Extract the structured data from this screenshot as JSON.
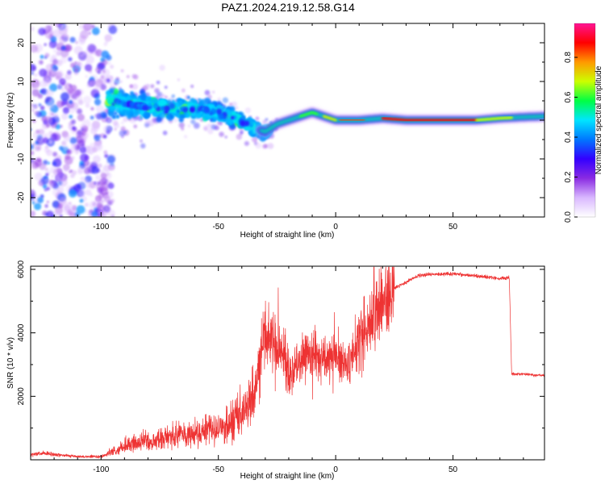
{
  "figure": {
    "title": "PAZ1.2024.219.12.58.G14"
  },
  "chart_data": [
    {
      "type": "heatmap",
      "title": "PAZ1.2024.219.12.58.G14",
      "xlabel": "Height of straight line (km)",
      "ylabel": "Frequency (Hz)",
      "xlim": [
        -130,
        89
      ],
      "ylim": [
        -25,
        25
      ],
      "x_ticks": [
        -100,
        -50,
        0,
        50
      ],
      "y_ticks": [
        -20,
        -10,
        0,
        10,
        20
      ],
      "colorbar": {
        "label": "Normalized spectral amplitude",
        "range": [
          0,
          0.97
        ],
        "ticks": [
          0.0,
          0.2,
          0.4,
          0.6,
          0.8
        ],
        "colormap": [
          "#ffffff",
          "#d9b8ff",
          "#8a2be2",
          "#3300ff",
          "#0077ff",
          "#00e5ff",
          "#00ff44",
          "#ccff00",
          "#ff9900",
          "#ff0000",
          "#ff1493"
        ]
      },
      "ridge": {
        "x": [
          -97,
          -90,
          -80,
          -70,
          -60,
          -50,
          -45,
          -40,
          -35,
          -30,
          -25,
          -20,
          -15,
          -10,
          -5,
          0,
          5,
          10,
          20,
          30,
          40,
          50,
          60,
          70,
          80,
          89
        ],
        "freq": [
          5,
          4,
          3.5,
          3,
          3,
          2,
          1,
          0,
          -2,
          -3,
          -1,
          0,
          1,
          2,
          1,
          0,
          0,
          0,
          0.5,
          0,
          0,
          0,
          0,
          0.5,
          0.8,
          1
        ]
      },
      "grid": false
    },
    {
      "type": "line",
      "xlabel": "Height of straight line (km)",
      "ylabel": "SNR (10 * v/v)",
      "xlim": [
        -130,
        89
      ],
      "ylim": [
        0,
        6100
      ],
      "x_ticks": [
        -100,
        -50,
        0,
        50
      ],
      "y_ticks": [
        2000,
        4000,
        6000
      ],
      "series_color": "#ee3333",
      "envelope": {
        "x": [
          -130,
          -125,
          -110,
          -100,
          -95,
          -90,
          -80,
          -70,
          -60,
          -50,
          -45,
          -40,
          -35,
          -32,
          -30,
          -25,
          -22,
          -20,
          -15,
          -10,
          -5,
          0,
          5,
          10,
          15,
          20,
          25,
          30,
          35,
          40,
          50,
          60,
          70,
          74,
          75,
          80,
          89
        ],
        "y": [
          150,
          200,
          100,
          100,
          250,
          400,
          600,
          700,
          800,
          900,
          1100,
          1400,
          2000,
          3500,
          3800,
          3500,
          3200,
          2600,
          3200,
          3400,
          3200,
          3300,
          3000,
          3700,
          4500,
          5000,
          5400,
          5600,
          5800,
          5850,
          5850,
          5800,
          5700,
          5750,
          2700,
          2700,
          2650
        ]
      },
      "grid": false
    }
  ]
}
